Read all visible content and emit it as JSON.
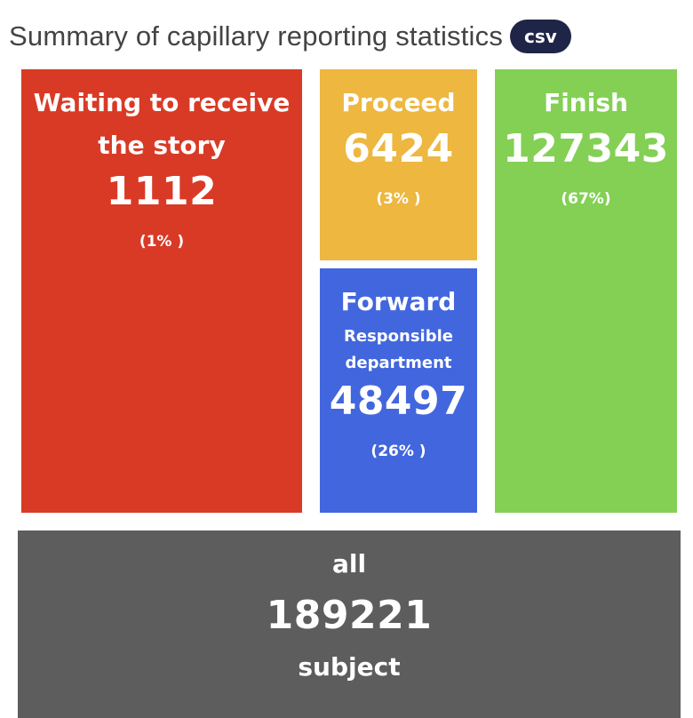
{
  "header": {
    "title": "Summary of capillary reporting statistics",
    "csv_label": "csv"
  },
  "tiles": {
    "waiting": {
      "label_line1": "Waiting to receive",
      "label_line2": "the story",
      "count": "1112",
      "percent": "(1% )",
      "color": "#d93a26"
    },
    "proceed": {
      "label": "Proceed",
      "count": "6424",
      "percent": "(3% )",
      "color": "#edb740"
    },
    "forward": {
      "label": "Forward",
      "sublabel_line1": "Responsible",
      "sublabel_line2": "department",
      "count": "48497",
      "percent": "(26% )",
      "color": "#4266dd"
    },
    "finish": {
      "label": "Finish",
      "count": "127343",
      "percent": "(67%)",
      "color": "#83d055"
    },
    "all": {
      "label": "all",
      "count": "189221",
      "unit": "subject",
      "color": "#5d5d5d"
    }
  }
}
